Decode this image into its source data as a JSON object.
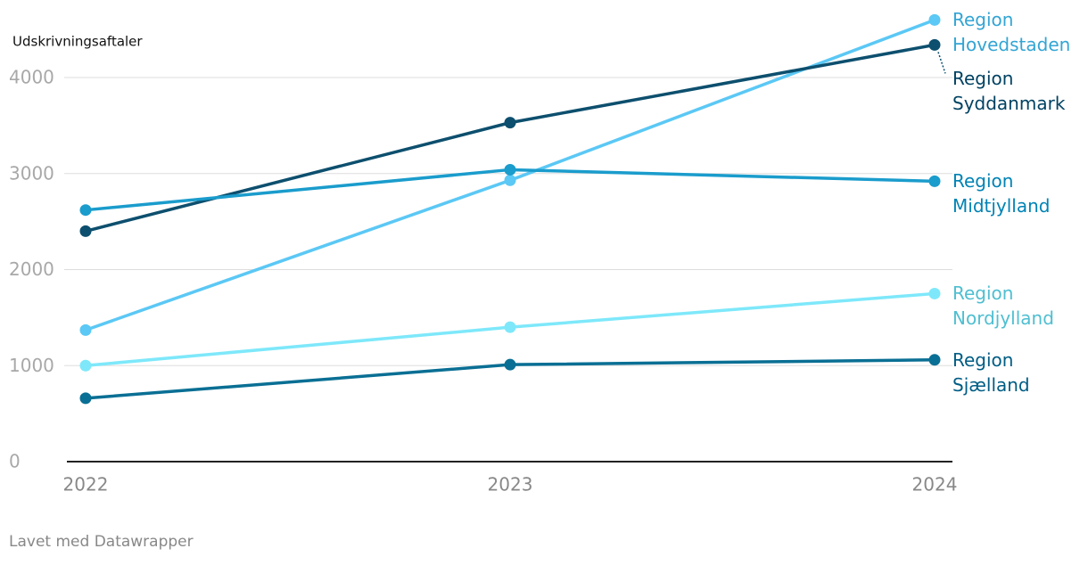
{
  "chart_data": {
    "type": "line",
    "y_axis_title": "Udskrivningsaftaler",
    "categories": [
      "2022",
      "2023",
      "2024"
    ],
    "series": [
      {
        "name": "Region Hovedstaden",
        "color": "#5bc8f5",
        "values": [
          1370,
          2930,
          4600
        ]
      },
      {
        "name": "Region Syddanmark",
        "color": "#0d4f6e",
        "values": [
          2400,
          3530,
          4340
        ]
      },
      {
        "name": "Region Midtjylland",
        "color": "#1a9ccc",
        "values": [
          2620,
          3040,
          2920
        ]
      },
      {
        "name": "Region Nordjylland",
        "color": "#7ee8fa",
        "values": [
          1000,
          1400,
          1750
        ]
      },
      {
        "name": "Region Sjælland",
        "color": "#0a6f94",
        "values": [
          660,
          1010,
          1060
        ]
      }
    ],
    "ylim": [
      0,
      4800
    ],
    "yticks": [
      0,
      1000,
      2000,
      3000,
      4000
    ],
    "grid": true,
    "footer": "Lavet med Datawrapper"
  }
}
